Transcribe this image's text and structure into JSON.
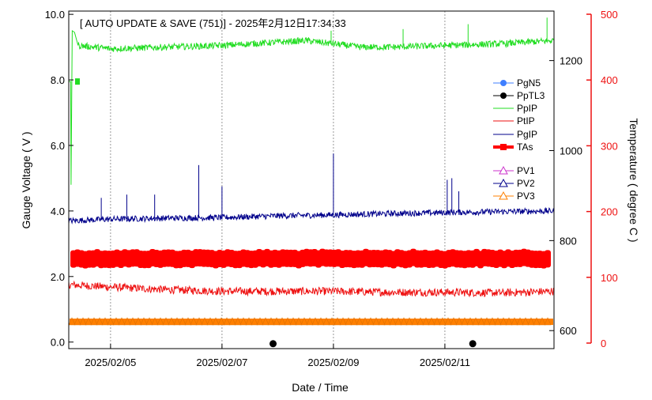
{
  "chart_data": {
    "type": "line",
    "title": "[ AUTO UPDATE & SAVE (751)] - 2025年2月12日17:34:33",
    "xlabel": "Date / Time",
    "ylabel": "Gauge Voltage ( V )",
    "y2label": "Temperature ( degree C )",
    "x_range": [
      "2025-02-04T06:00",
      "2025-02-12T23:00"
    ],
    "x_ticks": [
      "2025/02/05",
      "2025/02/07",
      "2025/02/09",
      "2025/02/11"
    ],
    "x_tick_dates": [
      "2025-02-05T00:00",
      "2025-02-07T00:00",
      "2025-02-09T00:00",
      "2025-02-11T00:00"
    ],
    "ylim": [
      -0.2,
      10.1
    ],
    "y_ticks": [
      "0.0",
      "2.0",
      "4.0",
      "6.0",
      "8.0",
      "10.0"
    ],
    "y_tick_values": [
      0,
      2,
      4,
      6,
      8,
      10
    ],
    "y2_inner_ticks": [
      "600",
      "800",
      "1000",
      "1200"
    ],
    "y2_inner_values": [
      600,
      800,
      1000,
      1200
    ],
    "y2_inner_range": [
      560,
      1310
    ],
    "y2_outer_ticks": [
      "0",
      "100",
      "200",
      "300",
      "400",
      "500"
    ],
    "y2_outer_values": [
      0,
      100,
      200,
      300,
      400,
      500
    ],
    "y2_outer_range": [
      0,
      500
    ],
    "grid": "vertical dotted at x ticks",
    "legend_position": "right",
    "series": [
      {
        "name": "PgN5",
        "color": "#3f7fff",
        "marker": "circle",
        "values": []
      },
      {
        "name": "PpTL3",
        "color": "#000000",
        "marker": "circle",
        "points": [
          {
            "x": "2025-02-07T22:00",
            "y": -0.05
          },
          {
            "x": "2025-02-11T12:00",
            "y": -0.05
          }
        ]
      },
      {
        "name": "PpIP",
        "color": "#22dd22",
        "marker": "none",
        "points": [
          {
            "x": "2025-02-04T06:00",
            "y": 7.95
          },
          {
            "x": "2025-02-04T06:50",
            "y": 7.95
          },
          {
            "x": "2025-02-04T07:00",
            "y": 4.8
          },
          {
            "x": "2025-02-04T07:30",
            "y": 9.5
          },
          {
            "x": "2025-02-04T08:30",
            "y": 9.45
          },
          {
            "x": "2025-02-04T10:00",
            "y": 9.05
          },
          {
            "x": "2025-02-05T00:00",
            "y": 8.95
          },
          {
            "x": "2025-02-06T00:00",
            "y": 9.0
          },
          {
            "x": "2025-02-07T00:00",
            "y": 9.05
          },
          {
            "x": "2025-02-08T00:00",
            "y": 9.15
          },
          {
            "x": "2025-02-08T12:00",
            "y": 9.2
          },
          {
            "x": "2025-02-09T00:00",
            "y": 9.1
          },
          {
            "x": "2025-02-09T12:00",
            "y": 9.0
          },
          {
            "x": "2025-02-10T00:00",
            "y": 9.0
          },
          {
            "x": "2025-02-11T00:00",
            "y": 9.05
          },
          {
            "x": "2025-02-12T00:00",
            "y": 9.1
          },
          {
            "x": "2025-02-12T23:00",
            "y": 9.2
          }
        ]
      },
      {
        "name": "PtIP",
        "color": "#ee1111",
        "marker": "none",
        "points": [
          {
            "x": "2025-02-04T06:00",
            "y": 1.75
          },
          {
            "x": "2025-02-05T00:00",
            "y": 1.68
          },
          {
            "x": "2025-02-06T00:00",
            "y": 1.6
          },
          {
            "x": "2025-02-07T00:00",
            "y": 1.55
          },
          {
            "x": "2025-02-08T00:00",
            "y": 1.55
          },
          {
            "x": "2025-02-09T00:00",
            "y": 1.55
          },
          {
            "x": "2025-02-10T00:00",
            "y": 1.52
          },
          {
            "x": "2025-02-11T00:00",
            "y": 1.52
          },
          {
            "x": "2025-02-12T00:00",
            "y": 1.5
          },
          {
            "x": "2025-02-12T23:00",
            "y": 1.55
          }
        ]
      },
      {
        "name": "PgIP",
        "color": "#00008b",
        "marker": "none",
        "points": [
          {
            "x": "2025-02-04T06:00",
            "y": 3.7
          },
          {
            "x": "2025-02-05T00:00",
            "y": 3.75
          },
          {
            "x": "2025-02-06T00:00",
            "y": 3.78
          },
          {
            "x": "2025-02-07T00:00",
            "y": 3.8
          },
          {
            "x": "2025-02-08T00:00",
            "y": 3.85
          },
          {
            "x": "2025-02-09T00:00",
            "y": 3.88
          },
          {
            "x": "2025-02-10T00:00",
            "y": 3.92
          },
          {
            "x": "2025-02-11T00:00",
            "y": 3.95
          },
          {
            "x": "2025-02-12T00:00",
            "y": 3.98
          },
          {
            "x": "2025-02-12T23:00",
            "y": 4.0
          }
        ]
      },
      {
        "name": "TAs",
        "color": "#ff0000",
        "marker": "filled-square",
        "axis": "inner-right",
        "points": [
          {
            "x": "2025-02-04T06:00",
            "y": 760
          },
          {
            "x": "2025-02-12T23:00",
            "y": 760
          }
        ]
      },
      {
        "name": "PV1",
        "color": "#cc33cc",
        "marker": "open-triangle",
        "values": []
      },
      {
        "name": "PV2",
        "color": "#00008b",
        "marker": "open-triangle",
        "values": []
      },
      {
        "name": "PV3",
        "color": "#ff8000",
        "marker": "open-triangle",
        "points": [
          {
            "x": "2025-02-04T06:00",
            "y": 0.62
          },
          {
            "x": "2025-02-12T23:00",
            "y": 0.62
          }
        ]
      }
    ],
    "spikes": {
      "PpIP": [
        {
          "x": "2025-02-08T23:00",
          "y": 9.5
        },
        {
          "x": "2025-02-10T06:00",
          "y": 9.55
        },
        {
          "x": "2025-02-11T10:00",
          "y": 9.7
        },
        {
          "x": "2025-02-12T20:00",
          "y": 9.9
        }
      ],
      "PgIP": [
        {
          "x": "2025-02-04T20:00",
          "y": 4.4
        },
        {
          "x": "2025-02-05T07:00",
          "y": 4.5
        },
        {
          "x": "2025-02-05T19:00",
          "y": 4.5
        },
        {
          "x": "2025-02-06T14:00",
          "y": 5.4
        },
        {
          "x": "2025-02-07T00:00",
          "y": 4.75
        },
        {
          "x": "2025-02-09T00:00",
          "y": 5.75
        },
        {
          "x": "2025-02-11T01:00",
          "y": 4.95
        },
        {
          "x": "2025-02-11T03:00",
          "y": 5.0
        },
        {
          "x": "2025-02-11T06:00",
          "y": 4.6
        }
      ]
    }
  }
}
